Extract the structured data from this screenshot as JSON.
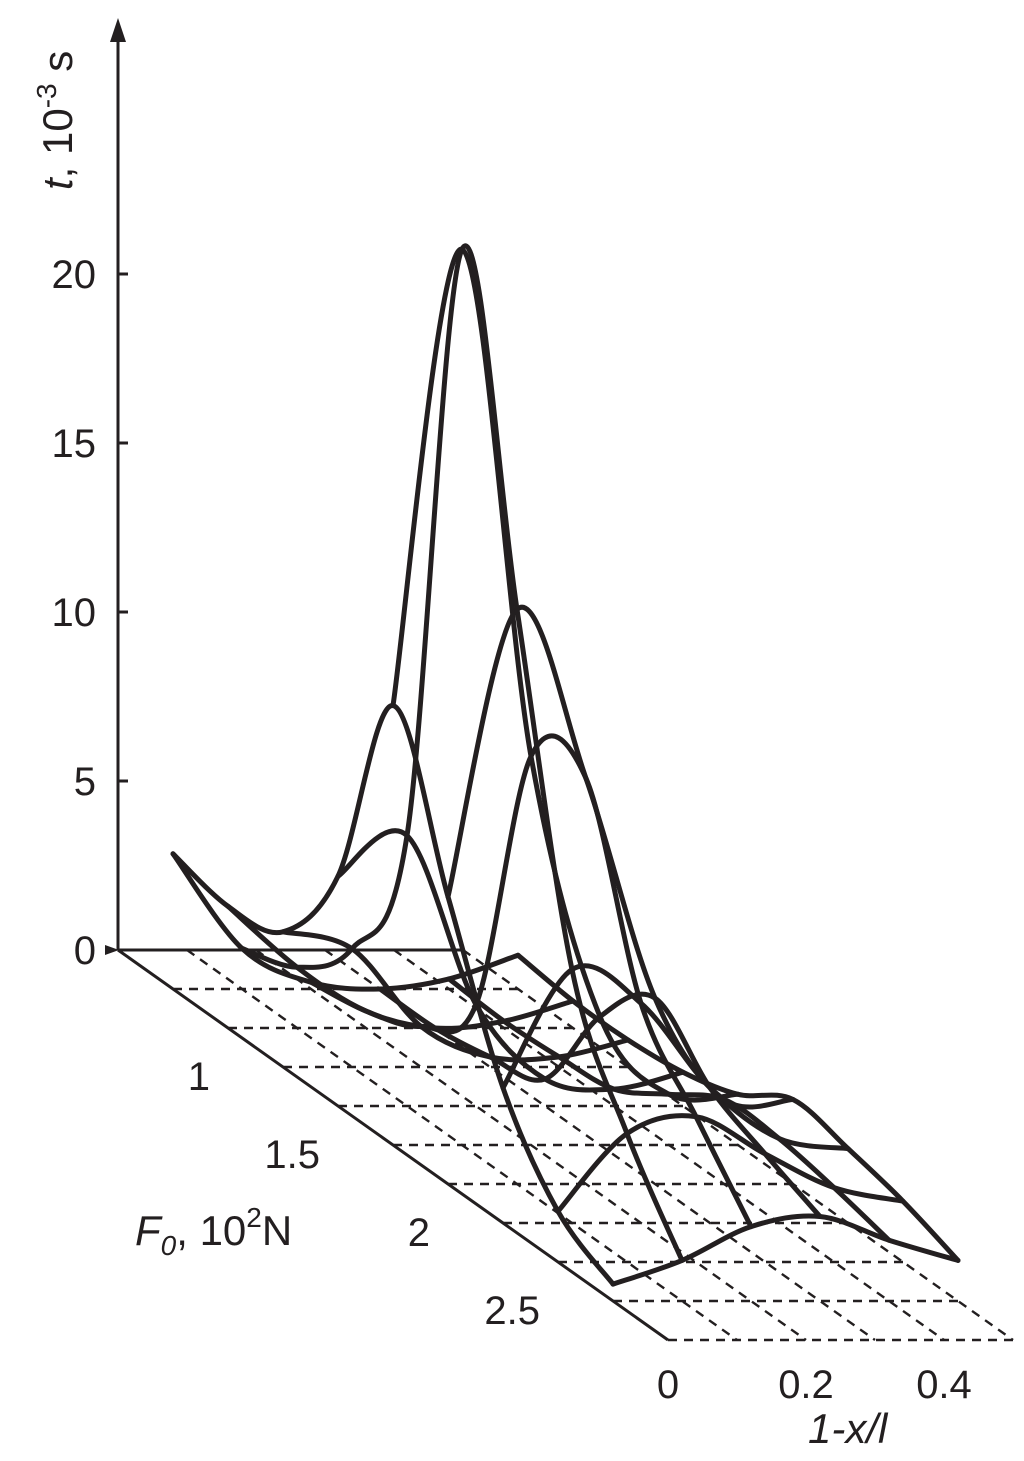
{
  "chart_data": {
    "type": "surface",
    "axes": {
      "z": {
        "label_symbol": "t",
        "label_unit": ", 10",
        "label_exp": "-3",
        "label_tail": " s",
        "ticks": [
          0,
          5,
          10,
          15,
          20
        ]
      },
      "y": {
        "label_symbol": "F",
        "label_sub": "0",
        "label_unit": ", 10",
        "label_exp": "2",
        "label_tail": "N",
        "ticks": [
          "1",
          "1.5",
          "2",
          "2.5"
        ]
      },
      "x": {
        "label": "1-x/l",
        "ticks": [
          "0",
          "0.2",
          "0.4"
        ]
      }
    },
    "x_grid": [
      0,
      0.1,
      0.2,
      0.3,
      0.4,
      0.5
    ],
    "y_grid": [
      0.75,
      1.0,
      1.25,
      1.5,
      1.75,
      2.0,
      2.25,
      2.5,
      2.75
    ],
    "zlim": [
      0,
      27
    ],
    "series": [
      {
        "values": [
          4.0,
          1.2,
          0.2,
          0.0,
          0.3,
          1.0
        ]
      },
      {
        "values": [
          3.6,
          1.8,
          0.5,
          0.0,
          0.2,
          0.8
        ]
      },
      {
        "values": [
          4.0,
          3.5,
          1.2,
          0.3,
          0.3,
          0.8
        ]
      },
      {
        "values": [
          6.8,
          8.0,
          3.0,
          0.8,
          0.5,
          1.0
        ]
      },
      {
        "values": [
          13.0,
          26.5,
          11.5,
          3.8,
          1.5,
          1.5
        ]
      },
      {
        "values": [
          8.5,
          17.0,
          12.0,
          5.5,
          2.5,
          2.5
        ]
      },
      {
        "values": [
          4.0,
          7.5,
          6.5,
          4.0,
          2.5,
          2.2
        ]
      },
      {
        "values": [
          1.5,
          3.8,
          4.3,
          3.2,
          2.2,
          1.8
        ]
      },
      {
        "values": [
          0.5,
          1.2,
          2.2,
          2.5,
          1.8,
          1.2
        ]
      }
    ]
  }
}
